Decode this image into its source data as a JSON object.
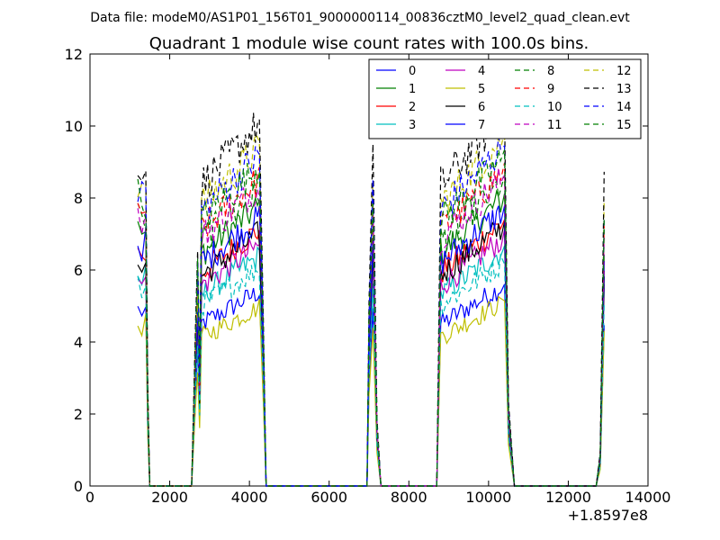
{
  "figure": {
    "suptitle": "Data file: modeM0/AS1P01_156T01_9000000114_00836cztM0_level2_quad_clean.evt"
  },
  "chart_data": {
    "type": "line",
    "title": "Quadrant 1 module wise count rates with 100.0s bins.",
    "xlabel": "",
    "ylabel": "",
    "xlim": [
      0,
      14000
    ],
    "ylim": [
      0,
      12
    ],
    "x_offset_label": "+1.8597e8",
    "x_ticks": [
      0,
      2000,
      4000,
      6000,
      8000,
      10000,
      12000,
      14000
    ],
    "x_tick_labels": [
      "0",
      "2000",
      "4000",
      "6000",
      "8000",
      "10000",
      "12000",
      "14000"
    ],
    "y_ticks": [
      0,
      2,
      4,
      6,
      8,
      10,
      12
    ],
    "y_tick_labels": [
      "0",
      "2",
      "4",
      "6",
      "8",
      "10",
      "12"
    ],
    "grid": false,
    "legend_position": "top-right",
    "legend_columns": 4,
    "segments": [
      {
        "start": 1200,
        "end": 1500
      },
      {
        "start": 2800,
        "end": 4300
      },
      {
        "start": 7000,
        "end": 7200
      },
      {
        "start": 8800,
        "end": 10400
      },
      {
        "start": 12800,
        "end": 12900
      }
    ],
    "series": [
      {
        "name": "0",
        "color": "#0000ff",
        "dash": "solid",
        "level": 5.0
      },
      {
        "name": "1",
        "color": "#008000",
        "dash": "solid",
        "level": 7.2
      },
      {
        "name": "2",
        "color": "#ff0000",
        "dash": "solid",
        "level": 6.6
      },
      {
        "name": "3",
        "color": "#00bfbf",
        "dash": "solid",
        "level": 5.9
      },
      {
        "name": "4",
        "color": "#bf00bf",
        "dash": "solid",
        "level": 6.2
      },
      {
        "name": "5",
        "color": "#bfbf00",
        "dash": "solid",
        "level": 4.6
      },
      {
        "name": "6",
        "color": "#000000",
        "dash": "solid",
        "level": 6.5
      },
      {
        "name": "7",
        "color": "#0000ff",
        "dash": "solid",
        "level": 6.9
      },
      {
        "name": "8",
        "color": "#008000",
        "dash": "dashed",
        "level": 7.6
      },
      {
        "name": "9",
        "color": "#ff0000",
        "dash": "dashed",
        "level": 7.9
      },
      {
        "name": "10",
        "color": "#00bfbf",
        "dash": "dashed",
        "level": 5.6
      },
      {
        "name": "11",
        "color": "#bf00bf",
        "dash": "dashed",
        "level": 7.7
      },
      {
        "name": "12",
        "color": "#bfbf00",
        "dash": "dashed",
        "level": 8.7
      },
      {
        "name": "13",
        "color": "#000000",
        "dash": "dashed",
        "level": 9.3
      },
      {
        "name": "14",
        "color": "#0000ff",
        "dash": "dashed",
        "level": 8.5
      },
      {
        "name": "15",
        "color": "#008000",
        "dash": "dashed",
        "level": 8.2
      }
    ]
  }
}
